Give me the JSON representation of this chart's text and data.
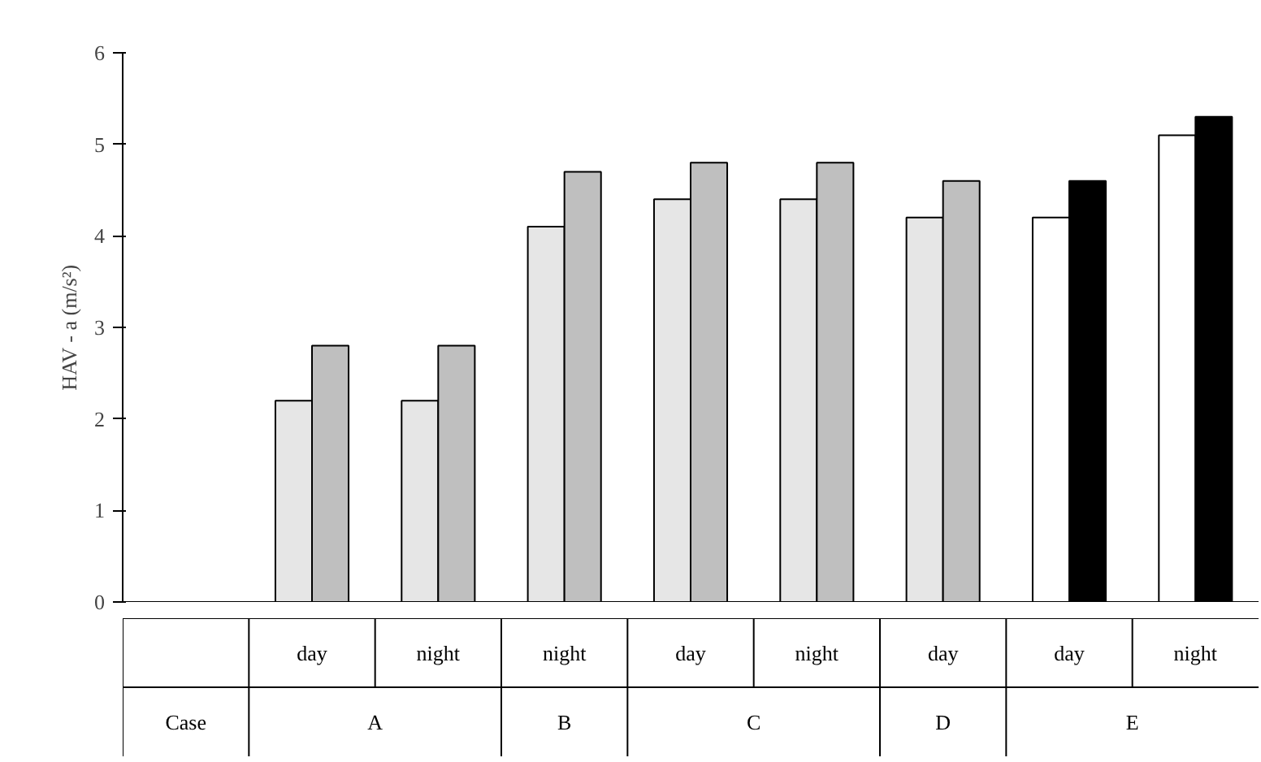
{
  "chart_data": {
    "type": "bar",
    "ylabel": "HAV - a (m/s²)",
    "categories": [
      null,
      "day",
      "night",
      "night",
      "day",
      "night",
      "day",
      "day",
      "night"
    ],
    "series": [
      {
        "colors": [
          "#e6e6e6",
          "#e6e6e6",
          "#e6e6e6",
          "#e6e6e6",
          "#e6e6e6",
          "#e6e6e6",
          "#e6e6e6",
          "#ffffff",
          "#ffffff"
        ],
        "values": [
          null,
          2.2,
          2.2,
          4.1,
          4.4,
          4.4,
          4.2,
          4.2,
          5.1
        ]
      },
      {
        "colors": [
          "#bfbfbf",
          "#bfbfbf",
          "#bfbfbf",
          "#bfbfbf",
          "#bfbfbf",
          "#bfbfbf",
          "#bfbfbf",
          "#000000",
          "#000000"
        ],
        "values": [
          null,
          2.8,
          2.8,
          4.7,
          4.8,
          4.8,
          4.6,
          4.6,
          5.3
        ]
      }
    ],
    "ylim": [
      0,
      6
    ],
    "yticks": [
      0,
      1,
      2,
      3,
      4,
      5,
      6
    ],
    "grid": false,
    "annotations": [
      "Case",
      "A",
      "B",
      "C",
      "D",
      "E"
    ]
  }
}
